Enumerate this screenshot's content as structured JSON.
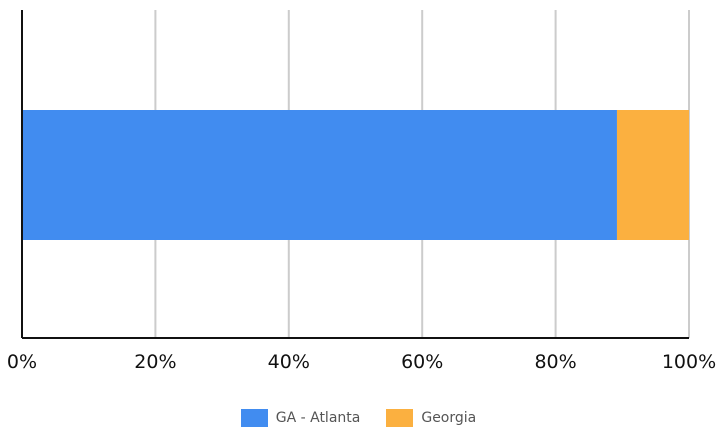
{
  "chart_data": {
    "type": "bar",
    "orientation": "horizontal",
    "stacked": "percent",
    "categories": [
      ""
    ],
    "series": [
      {
        "name": "GA - Atlanta",
        "values": [
          89.2
        ],
        "color": "#418CF0"
      },
      {
        "name": "Georgia",
        "values": [
          10.8
        ],
        "color": "#FBB040"
      }
    ],
    "xlim": [
      0,
      100
    ],
    "x_ticks": [
      "0%",
      "20%",
      "40%",
      "60%",
      "80%",
      "100%"
    ],
    "grid": true,
    "legend": "bottom"
  }
}
